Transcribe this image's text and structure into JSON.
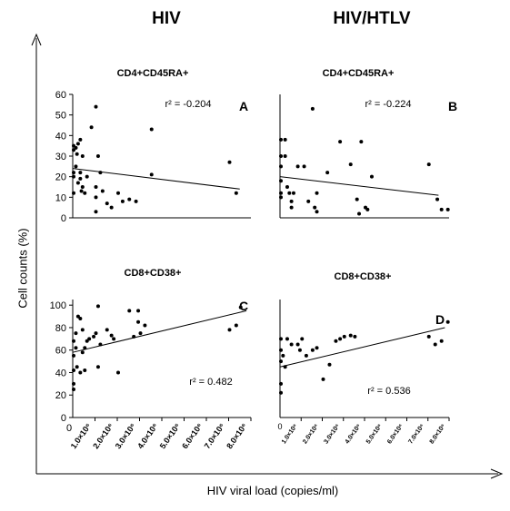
{
  "columns": [
    "HIV",
    "HIV/HTLV"
  ],
  "ylabel": "Cell counts (%)",
  "xlabel": "HIV viral load (copies/ml)",
  "chart_data": [
    {
      "type": "scatter",
      "panel": "A",
      "title": "CD4+CD45RA+",
      "group": "HIV",
      "r2_label": "r² = -0.204",
      "ylim": [
        0,
        60
      ],
      "yticks": [
        0,
        10,
        20,
        30,
        40,
        50,
        60
      ],
      "xlim": [
        0,
        8000000
      ],
      "fit": [
        [
          0,
          24
        ],
        [
          7500000,
          14
        ]
      ],
      "points": [
        [
          0,
          35
        ],
        [
          0,
          33
        ],
        [
          0,
          22
        ],
        [
          0,
          20
        ],
        [
          0,
          12
        ],
        [
          100000,
          34
        ],
        [
          150000,
          31
        ],
        [
          100000,
          25
        ],
        [
          200000,
          36
        ],
        [
          300000,
          38
        ],
        [
          300000,
          22
        ],
        [
          400000,
          30
        ],
        [
          200000,
          17
        ],
        [
          300000,
          19
        ],
        [
          400000,
          15
        ],
        [
          350000,
          13
        ],
        [
          500000,
          12
        ],
        [
          600000,
          20
        ],
        [
          800000,
          44
        ],
        [
          1000000,
          54
        ],
        [
          1100000,
          30
        ],
        [
          1000000,
          15
        ],
        [
          1000000,
          10
        ],
        [
          1200000,
          22
        ],
        [
          1300000,
          13
        ],
        [
          1000000,
          3
        ],
        [
          1500000,
          7
        ],
        [
          1700000,
          5
        ],
        [
          2000000,
          12
        ],
        [
          2200000,
          8
        ],
        [
          2500000,
          9
        ],
        [
          2800000,
          8
        ],
        [
          3500000,
          43
        ],
        [
          3500000,
          21
        ],
        [
          7000000,
          27
        ],
        [
          7300000,
          12
        ]
      ]
    },
    {
      "type": "scatter",
      "panel": "B",
      "title": "CD4+CD45RA+",
      "group": "HIV/HTLV",
      "r2_label": "r² = -0.224",
      "ylim": [
        0,
        60
      ],
      "xlim": [
        0,
        8000000
      ],
      "fit": [
        [
          0,
          20
        ],
        [
          7500000,
          11
        ]
      ],
      "points": [
        [
          0,
          38
        ],
        [
          0,
          30
        ],
        [
          0,
          25
        ],
        [
          0,
          18
        ],
        [
          0,
          12
        ],
        [
          0,
          10
        ],
        [
          200000,
          38
        ],
        [
          200000,
          30
        ],
        [
          300000,
          15
        ],
        [
          400000,
          12
        ],
        [
          500000,
          8
        ],
        [
          500000,
          5
        ],
        [
          600000,
          12
        ],
        [
          800000,
          25
        ],
        [
          1100000,
          25
        ],
        [
          1500000,
          53
        ],
        [
          1300000,
          8
        ],
        [
          1600000,
          5
        ],
        [
          1700000,
          12
        ],
        [
          1700000,
          3
        ],
        [
          2200000,
          22
        ],
        [
          2800000,
          37
        ],
        [
          3300000,
          26
        ],
        [
          3600000,
          9
        ],
        [
          3700000,
          2
        ],
        [
          3800000,
          37
        ],
        [
          4000000,
          5
        ],
        [
          4100000,
          4
        ],
        [
          4300000,
          20
        ],
        [
          7000000,
          26
        ],
        [
          7400000,
          9
        ],
        [
          7600000,
          4
        ],
        [
          7900000,
          4
        ]
      ]
    },
    {
      "type": "scatter",
      "panel": "C",
      "title": "CD8+CD38+",
      "group": "HIV",
      "r2_label": "r² = 0.482",
      "ylim": [
        0,
        105
      ],
      "yticks": [
        0,
        20,
        40,
        60,
        80,
        100
      ],
      "xlim": [
        0,
        8000000
      ],
      "xticks": [
        "1.0×10⁶",
        "2.0×10⁶",
        "3.0×10⁶",
        "4.0×10⁶",
        "5.0×10⁶",
        "6.0×10⁶",
        "7.0×10⁶",
        "8.0×10⁶"
      ],
      "fit": [
        [
          0,
          58
        ],
        [
          7800000,
          95
        ]
      ],
      "points": [
        [
          0,
          68
        ],
        [
          0,
          55
        ],
        [
          0,
          42
        ],
        [
          0,
          30
        ],
        [
          0,
          25
        ],
        [
          100000,
          75
        ],
        [
          100000,
          62
        ],
        [
          150000,
          45
        ],
        [
          200000,
          90
        ],
        [
          300000,
          40
        ],
        [
          300000,
          88
        ],
        [
          400000,
          58
        ],
        [
          400000,
          78
        ],
        [
          500000,
          62
        ],
        [
          500000,
          42
        ],
        [
          600000,
          68
        ],
        [
          700000,
          70
        ],
        [
          900000,
          72
        ],
        [
          1000000,
          75
        ],
        [
          1100000,
          99
        ],
        [
          1100000,
          45
        ],
        [
          1200000,
          65
        ],
        [
          1500000,
          78
        ],
        [
          1700000,
          73
        ],
        [
          1800000,
          70
        ],
        [
          2000000,
          40
        ],
        [
          2500000,
          95
        ],
        [
          2700000,
          72
        ],
        [
          2900000,
          95
        ],
        [
          2900000,
          85
        ],
        [
          3000000,
          75
        ],
        [
          3200000,
          82
        ],
        [
          7000000,
          78
        ],
        [
          7300000,
          82
        ],
        [
          7500000,
          98
        ]
      ]
    },
    {
      "type": "scatter",
      "panel": "D",
      "title": "CD8+CD38+",
      "group": "HIV/HTLV",
      "r2_label": "r² = 0.536",
      "ylim": [
        0,
        105
      ],
      "xlim": [
        0,
        8000000
      ],
      "fit": [
        [
          0,
          45
        ],
        [
          7800000,
          80
        ]
      ],
      "points": [
        [
          0,
          70
        ],
        [
          0,
          60
        ],
        [
          0,
          50
        ],
        [
          0,
          30
        ],
        [
          0,
          22
        ],
        [
          100000,
          55
        ],
        [
          200000,
          45
        ],
        [
          300000,
          70
        ],
        [
          500000,
          65
        ],
        [
          800000,
          65
        ],
        [
          900000,
          60
        ],
        [
          1000000,
          70
        ],
        [
          1200000,
          55
        ],
        [
          1500000,
          60
        ],
        [
          1700000,
          62
        ],
        [
          2000000,
          34
        ],
        [
          2300000,
          47
        ],
        [
          2600000,
          68
        ],
        [
          2800000,
          70
        ],
        [
          3000000,
          72
        ],
        [
          3300000,
          73
        ],
        [
          3500000,
          72
        ],
        [
          7000000,
          72
        ],
        [
          7300000,
          65
        ],
        [
          7600000,
          68
        ],
        [
          7900000,
          85
        ]
      ]
    }
  ]
}
